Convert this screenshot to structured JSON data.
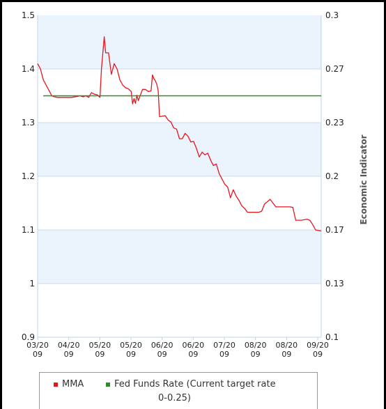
{
  "chart_data": {
    "type": "line",
    "x_tick_labels": [
      [
        "03/20",
        "09"
      ],
      [
        "04/20",
        "09"
      ],
      [
        "05/20",
        "09"
      ],
      [
        "05/20",
        "09"
      ],
      [
        "06/20",
        "09"
      ],
      [
        "06/20",
        "09"
      ],
      [
        "07/20",
        "09"
      ],
      [
        "08/20",
        "09"
      ],
      [
        "08/20",
        "09"
      ],
      [
        "09/20",
        "09"
      ]
    ],
    "y_left": {
      "ticks": [
        "1.5",
        "1.4",
        "1.3",
        "1.2",
        "1.1",
        "1",
        "0.9"
      ],
      "ylim": [
        0.9,
        1.5
      ]
    },
    "y_right": {
      "label": "Economic Indicator",
      "ticks": [
        "0.3",
        "0.27",
        "0.23",
        "0.2",
        "0.17",
        "0.13",
        "0.1"
      ],
      "ylim": [
        0.1,
        0.3
      ]
    },
    "x_range": [
      0,
      100
    ],
    "series": [
      {
        "name": "MMA",
        "color": "#e8141e",
        "x": [
          0,
          1,
          2,
          3,
          4,
          5,
          6,
          7,
          8,
          10,
          12,
          14,
          15,
          16,
          17,
          18,
          19,
          20,
          21,
          22,
          22.5,
          23,
          23.5,
          24,
          25,
          26,
          27,
          28,
          29,
          30,
          31,
          32,
          33,
          33.5,
          34,
          34.5,
          35,
          35.5,
          36,
          37,
          38,
          39,
          40,
          40.5,
          41,
          41.5,
          42,
          42.5,
          43,
          45,
          46,
          47,
          48,
          49,
          50,
          51,
          52,
          53,
          54,
          55,
          56,
          57,
          58,
          59,
          60,
          61,
          62,
          63,
          64,
          65,
          66,
          67,
          68,
          69,
          70,
          71,
          72,
          73,
          74,
          75,
          76,
          77,
          78,
          79,
          80,
          82,
          84,
          86,
          87,
          88,
          89,
          90,
          91,
          92,
          93,
          94,
          95,
          96,
          97,
          98,
          99,
          100
        ],
        "values": [
          1.41,
          1.4,
          1.38,
          1.37,
          1.36,
          1.35,
          1.348,
          1.347,
          1.347,
          1.347,
          1.347,
          1.349,
          1.35,
          1.348,
          1.35,
          1.347,
          1.356,
          1.353,
          1.352,
          1.347,
          1.4,
          1.43,
          1.46,
          1.43,
          1.43,
          1.39,
          1.41,
          1.4,
          1.38,
          1.37,
          1.365,
          1.363,
          1.358,
          1.335,
          1.345,
          1.336,
          1.351,
          1.341,
          1.348,
          1.362,
          1.362,
          1.358,
          1.359,
          1.389,
          1.382,
          1.378,
          1.372,
          1.36,
          1.311,
          1.313,
          1.305,
          1.301,
          1.29,
          1.288,
          1.27,
          1.27,
          1.28,
          1.275,
          1.264,
          1.265,
          1.252,
          1.236,
          1.245,
          1.24,
          1.243,
          1.23,
          1.22,
          1.223,
          1.205,
          1.195,
          1.185,
          1.18,
          1.16,
          1.175,
          1.163,
          1.155,
          1.145,
          1.14,
          1.133,
          1.133,
          1.133,
          1.133,
          1.133,
          1.135,
          1.148,
          1.157,
          1.143,
          1.143,
          1.143,
          1.143,
          1.143,
          1.142,
          1.118,
          1.118,
          1.118,
          1.119,
          1.12,
          1.118,
          1.11,
          1.1,
          1.099,
          1.098
        ]
      },
      {
        "name": "Fed Funds Rate (Current target rate 0-0.25)",
        "color": "#2e8b2e",
        "x": [
          2,
          100
        ],
        "values": [
          1.35,
          1.35
        ]
      }
    ],
    "legend": {
      "items": [
        {
          "label": "MMA",
          "color": "#e8141e"
        },
        {
          "label_line1": "Fed Funds Rate (Current target rate",
          "label_line2": "0-0.25)",
          "color": "#2e8b2e"
        }
      ],
      "placement": "bottom"
    },
    "grid": true,
    "band_color": "#ebf3fc"
  }
}
